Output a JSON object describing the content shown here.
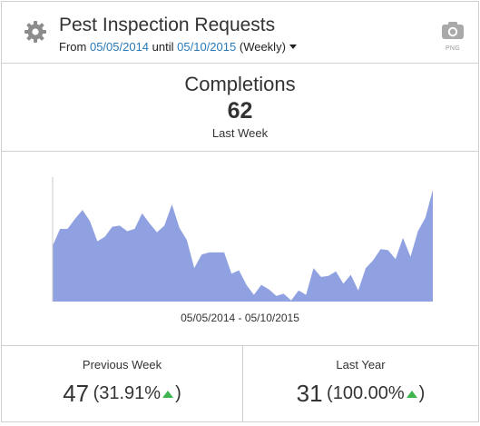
{
  "header": {
    "title": "Pest Inspection Requests",
    "from_label": "From",
    "start_date": "05/05/2014",
    "until_label": "until",
    "end_date": "05/10/2015",
    "period": "(Weekly)",
    "export_label": "PNG",
    "gear_icon": "gear-icon",
    "camera_icon": "camera-icon"
  },
  "summary": {
    "label": "Completions",
    "value": "62",
    "period": "Last Week"
  },
  "chart": {
    "range_label": "05/05/2014 - 05/10/2015"
  },
  "comparisons": {
    "previous_week": {
      "label": "Previous Week",
      "value": "47",
      "percent": "(31.91%",
      "close": ")",
      "trend": "up"
    },
    "last_year": {
      "label": "Last Year",
      "value": "31",
      "percent": "(100.00%",
      "close": ")",
      "trend": "up"
    }
  },
  "colors": {
    "fill": "#8fa1e0",
    "accent": "#2a7ab7",
    "up": "#3fb54f"
  },
  "chart_data": {
    "type": "area",
    "x_label_range": "05/05/2014 - 05/10/2015",
    "ylim": [
      0,
      100
    ],
    "series": [
      {
        "values": [
          50,
          65,
          65,
          74,
          82,
          72,
          54,
          58,
          67,
          68,
          63,
          65,
          79,
          70,
          62,
          68,
          87,
          66,
          55,
          30,
          42,
          44,
          44,
          44,
          25,
          28,
          15,
          6,
          15,
          11,
          5,
          7,
          1,
          10,
          6,
          30,
          22,
          23,
          27,
          16,
          24,
          10,
          30,
          37,
          47,
          46,
          38,
          57,
          40,
          63,
          75,
          100
        ]
      }
    ]
  }
}
